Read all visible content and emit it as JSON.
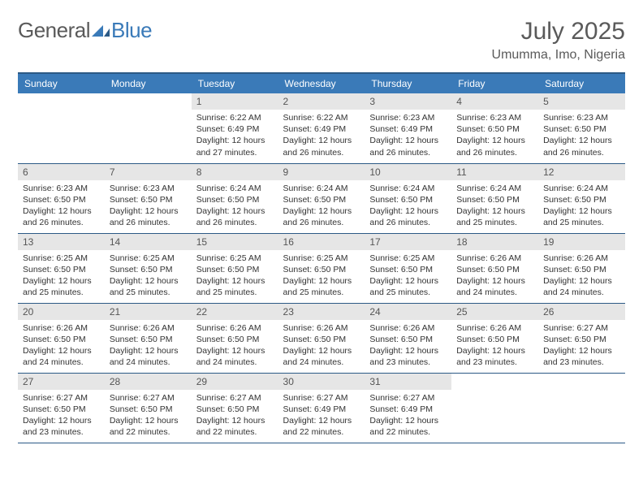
{
  "logo": {
    "text_left": "General",
    "text_right": "Blue"
  },
  "title": "July 2025",
  "location": "Umumma, Imo, Nigeria",
  "colors": {
    "header_bg": "#3a7ab8",
    "header_border": "#2c5a86",
    "day_num_bg": "#e6e6e6",
    "text": "#333333",
    "logo_gray": "#5a5a5a",
    "logo_blue": "#3a7ab8",
    "page_bg": "#ffffff"
  },
  "typography": {
    "title_fontsize": 30,
    "location_fontsize": 16,
    "header_fontsize": 12,
    "daynum_fontsize": 12,
    "body_fontsize": 10.5
  },
  "weekdays": [
    "Sunday",
    "Monday",
    "Tuesday",
    "Wednesday",
    "Thursday",
    "Friday",
    "Saturday"
  ],
  "weeks": [
    [
      {
        "n": "",
        "sr": "",
        "ss": "",
        "dl": ""
      },
      {
        "n": "",
        "sr": "",
        "ss": "",
        "dl": ""
      },
      {
        "n": "1",
        "sr": "6:22 AM",
        "ss": "6:49 PM",
        "dl": "12 hours and 27 minutes."
      },
      {
        "n": "2",
        "sr": "6:22 AM",
        "ss": "6:49 PM",
        "dl": "12 hours and 26 minutes."
      },
      {
        "n": "3",
        "sr": "6:23 AM",
        "ss": "6:49 PM",
        "dl": "12 hours and 26 minutes."
      },
      {
        "n": "4",
        "sr": "6:23 AM",
        "ss": "6:50 PM",
        "dl": "12 hours and 26 minutes."
      },
      {
        "n": "5",
        "sr": "6:23 AM",
        "ss": "6:50 PM",
        "dl": "12 hours and 26 minutes."
      }
    ],
    [
      {
        "n": "6",
        "sr": "6:23 AM",
        "ss": "6:50 PM",
        "dl": "12 hours and 26 minutes."
      },
      {
        "n": "7",
        "sr": "6:23 AM",
        "ss": "6:50 PM",
        "dl": "12 hours and 26 minutes."
      },
      {
        "n": "8",
        "sr": "6:24 AM",
        "ss": "6:50 PM",
        "dl": "12 hours and 26 minutes."
      },
      {
        "n": "9",
        "sr": "6:24 AM",
        "ss": "6:50 PM",
        "dl": "12 hours and 26 minutes."
      },
      {
        "n": "10",
        "sr": "6:24 AM",
        "ss": "6:50 PM",
        "dl": "12 hours and 26 minutes."
      },
      {
        "n": "11",
        "sr": "6:24 AM",
        "ss": "6:50 PM",
        "dl": "12 hours and 25 minutes."
      },
      {
        "n": "12",
        "sr": "6:24 AM",
        "ss": "6:50 PM",
        "dl": "12 hours and 25 minutes."
      }
    ],
    [
      {
        "n": "13",
        "sr": "6:25 AM",
        "ss": "6:50 PM",
        "dl": "12 hours and 25 minutes."
      },
      {
        "n": "14",
        "sr": "6:25 AM",
        "ss": "6:50 PM",
        "dl": "12 hours and 25 minutes."
      },
      {
        "n": "15",
        "sr": "6:25 AM",
        "ss": "6:50 PM",
        "dl": "12 hours and 25 minutes."
      },
      {
        "n": "16",
        "sr": "6:25 AM",
        "ss": "6:50 PM",
        "dl": "12 hours and 25 minutes."
      },
      {
        "n": "17",
        "sr": "6:25 AM",
        "ss": "6:50 PM",
        "dl": "12 hours and 25 minutes."
      },
      {
        "n": "18",
        "sr": "6:26 AM",
        "ss": "6:50 PM",
        "dl": "12 hours and 24 minutes."
      },
      {
        "n": "19",
        "sr": "6:26 AM",
        "ss": "6:50 PM",
        "dl": "12 hours and 24 minutes."
      }
    ],
    [
      {
        "n": "20",
        "sr": "6:26 AM",
        "ss": "6:50 PM",
        "dl": "12 hours and 24 minutes."
      },
      {
        "n": "21",
        "sr": "6:26 AM",
        "ss": "6:50 PM",
        "dl": "12 hours and 24 minutes."
      },
      {
        "n": "22",
        "sr": "6:26 AM",
        "ss": "6:50 PM",
        "dl": "12 hours and 24 minutes."
      },
      {
        "n": "23",
        "sr": "6:26 AM",
        "ss": "6:50 PM",
        "dl": "12 hours and 24 minutes."
      },
      {
        "n": "24",
        "sr": "6:26 AM",
        "ss": "6:50 PM",
        "dl": "12 hours and 23 minutes."
      },
      {
        "n": "25",
        "sr": "6:26 AM",
        "ss": "6:50 PM",
        "dl": "12 hours and 23 minutes."
      },
      {
        "n": "26",
        "sr": "6:27 AM",
        "ss": "6:50 PM",
        "dl": "12 hours and 23 minutes."
      }
    ],
    [
      {
        "n": "27",
        "sr": "6:27 AM",
        "ss": "6:50 PM",
        "dl": "12 hours and 23 minutes."
      },
      {
        "n": "28",
        "sr": "6:27 AM",
        "ss": "6:50 PM",
        "dl": "12 hours and 22 minutes."
      },
      {
        "n": "29",
        "sr": "6:27 AM",
        "ss": "6:50 PM",
        "dl": "12 hours and 22 minutes."
      },
      {
        "n": "30",
        "sr": "6:27 AM",
        "ss": "6:49 PM",
        "dl": "12 hours and 22 minutes."
      },
      {
        "n": "31",
        "sr": "6:27 AM",
        "ss": "6:49 PM",
        "dl": "12 hours and 22 minutes."
      },
      {
        "n": "",
        "sr": "",
        "ss": "",
        "dl": ""
      },
      {
        "n": "",
        "sr": "",
        "ss": "",
        "dl": ""
      }
    ]
  ],
  "labels": {
    "sunrise": "Sunrise:",
    "sunset": "Sunset:",
    "daylight": "Daylight:"
  }
}
